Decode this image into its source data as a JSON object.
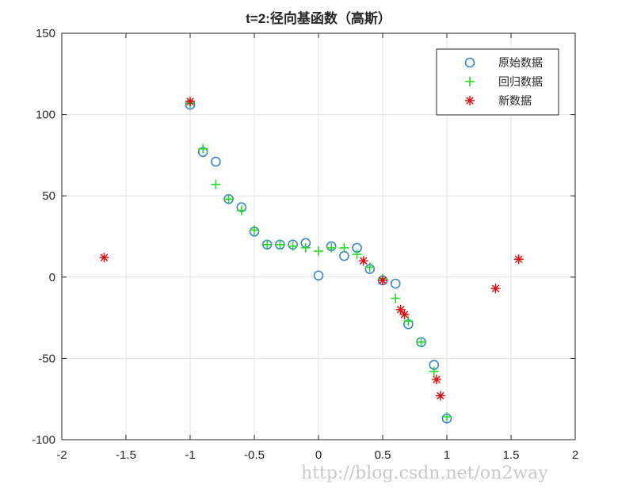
{
  "chart_data": {
    "type": "scatter",
    "title": "t=2:径向基函数（高斯）",
    "xlabel": "",
    "ylabel": "",
    "xlim": [
      -2,
      2
    ],
    "ylim": [
      -100,
      150
    ],
    "xticks": [
      -2,
      -1.5,
      -1,
      -0.5,
      0,
      0.5,
      1,
      1.5,
      2
    ],
    "xtick_labels": [
      "-2",
      "-1.5",
      "-1",
      "-0.5",
      "0",
      "0.5",
      "1",
      "1.5",
      "2"
    ],
    "yticks": [
      -100,
      -50,
      0,
      50,
      100,
      150
    ],
    "ytick_labels": [
      "-100",
      "-50",
      "0",
      "50",
      "100",
      "150"
    ],
    "grid": true,
    "legend_position": "top-right",
    "series": [
      {
        "name": "原始数据",
        "marker": "circle",
        "color": "#3a86c8",
        "x": [
          -1.0,
          -0.9,
          -0.8,
          -0.7,
          -0.6,
          -0.5,
          -0.4,
          -0.3,
          -0.2,
          -0.1,
          0.0,
          0.1,
          0.2,
          0.3,
          0.4,
          0.5,
          0.6,
          0.7,
          0.8,
          0.9,
          1.0
        ],
        "y": [
          106,
          77,
          71,
          48,
          43,
          28,
          20,
          20,
          20,
          21,
          1,
          19,
          13,
          18,
          5,
          -2,
          -4,
          -29,
          -40,
          -54,
          -87
        ]
      },
      {
        "name": "回归数据",
        "marker": "plus",
        "color": "#22dd22",
        "x": [
          -1.0,
          -0.9,
          -0.8,
          -0.7,
          -0.6,
          -0.5,
          -0.4,
          -0.3,
          -0.2,
          -0.1,
          0.0,
          0.1,
          0.2,
          0.3,
          0.4,
          0.5,
          0.6,
          0.7,
          0.8,
          0.9,
          1.0
        ],
        "y": [
          107,
          79,
          57,
          48,
          41,
          29,
          20,
          20,
          19,
          18,
          16,
          18,
          18,
          14,
          6,
          -1,
          -13,
          -27,
          -40,
          -58,
          -86
        ]
      },
      {
        "name": "新数据",
        "marker": "asterisk",
        "color": "#dd1111",
        "x": [
          -1.67,
          -1.0,
          0.35,
          0.5,
          0.64,
          0.67,
          0.92,
          0.95,
          1.38,
          1.56
        ],
        "y": [
          12,
          108,
          10,
          -2,
          -20,
          -23,
          -63,
          -73,
          -7,
          11
        ]
      }
    ]
  },
  "watermark": "http://blog.csdn.net/on2way"
}
